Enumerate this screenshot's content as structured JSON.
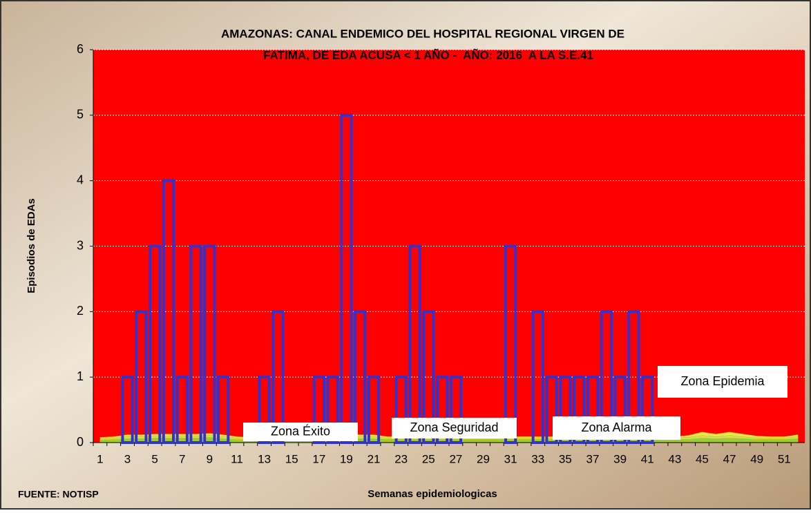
{
  "chart_data": {
    "type": "bar",
    "title": [
      "AMAZONAS: CANAL ENDEMICO DEL HOSPITAL REGIONAL VIRGEN DE",
      "FATIMA, DE EDA ACUSA < 1 AÑO -  AÑO: 2016  A LA S.E.41"
    ],
    "x_label": "Semanas epidemiologicas",
    "y_label": "Episodios de EDAs",
    "source": "FUENTE: NOTISP",
    "categories": [
      1,
      null,
      3,
      null,
      5,
      null,
      7,
      null,
      9,
      null,
      11,
      null,
      13,
      null,
      15,
      null,
      17,
      null,
      19,
      null,
      21,
      null,
      23,
      null,
      25,
      null,
      27,
      null,
      29,
      null,
      31,
      null,
      33,
      null,
      35,
      null,
      37,
      null,
      39,
      null,
      41,
      null,
      43,
      null,
      45,
      null,
      47,
      null,
      49,
      null,
      51,
      null
    ],
    "series": [
      {
        "name": null,
        "color": "#3333cc",
        "values": [
          0,
          0,
          1,
          2,
          3,
          4,
          1,
          3,
          3,
          1,
          0,
          0,
          1,
          2,
          0,
          0,
          1,
          1,
          5,
          2,
          1,
          0,
          1,
          3,
          2,
          1,
          1,
          0,
          0,
          0,
          3,
          0,
          2,
          1,
          1,
          1,
          1,
          2,
          1,
          2,
          1,
          null,
          null,
          null,
          null,
          null,
          null,
          null,
          null,
          null,
          null,
          null
        ]
      }
    ],
    "zones": [
      {
        "name": "Zona Éxito",
        "color": "#9acd32",
        "values": [
          0.04,
          0.05,
          0.06,
          0.06,
          0.07,
          0.07,
          0.07,
          0.07,
          0.08,
          0.06,
          0.05,
          0.04,
          0.04,
          0.04,
          0.04,
          0.04,
          0.04,
          0.05,
          0.06,
          0.06,
          0.06,
          0.05,
          0.05,
          0.05,
          0.05,
          0.05,
          0.05,
          0.05,
          0.05,
          0.05,
          0.05,
          0.05,
          0.05,
          0.05,
          0.05,
          0.05,
          0.05,
          0.05,
          0.05,
          0.05,
          0.05,
          0.05,
          0.05,
          0.05,
          0.07,
          0.06,
          0.07,
          0.06,
          0.05,
          0.05,
          0.05,
          0.06
        ]
      },
      {
        "name": "Zona Seguridad",
        "color": "#c8e06e",
        "values": [
          0.02,
          0.02,
          0.03,
          0.03,
          0.03,
          0.03,
          0.03,
          0.03,
          0.03,
          0.03,
          0.02,
          0.02,
          0.02,
          0.02,
          0.02,
          0.02,
          0.02,
          0.02,
          0.03,
          0.03,
          0.03,
          0.02,
          0.02,
          0.02,
          0.02,
          0.02,
          0.02,
          0.02,
          0.02,
          0.02,
          0.02,
          0.02,
          0.02,
          0.02,
          0.02,
          0.02,
          0.02,
          0.02,
          0.02,
          0.02,
          0.02,
          0.02,
          0.02,
          0.03,
          0.04,
          0.03,
          0.04,
          0.03,
          0.02,
          0.02,
          0.02,
          0.03
        ]
      },
      {
        "name": "Zona Alarma",
        "color": "#f2e64a",
        "values": [
          0.02,
          0.02,
          0.03,
          0.03,
          0.03,
          0.03,
          0.03,
          0.03,
          0.03,
          0.03,
          0.02,
          0.02,
          0.02,
          0.02,
          0.02,
          0.02,
          0.02,
          0.02,
          0.03,
          0.03,
          0.03,
          0.02,
          0.02,
          0.02,
          0.02,
          0.02,
          0.02,
          0.02,
          0.02,
          0.02,
          0.02,
          0.02,
          0.02,
          0.02,
          0.02,
          0.02,
          0.02,
          0.02,
          0.02,
          0.02,
          0.02,
          0.02,
          0.02,
          0.03,
          0.05,
          0.04,
          0.05,
          0.04,
          0.03,
          0.02,
          0.02,
          0.03
        ]
      },
      {
        "name": "Zona Epidemia",
        "color": "#ff0000"
      }
    ],
    "ylim": [
      0,
      6
    ],
    "yticks": [
      0,
      1,
      2,
      3,
      4,
      5,
      6
    ],
    "grid": true
  }
}
